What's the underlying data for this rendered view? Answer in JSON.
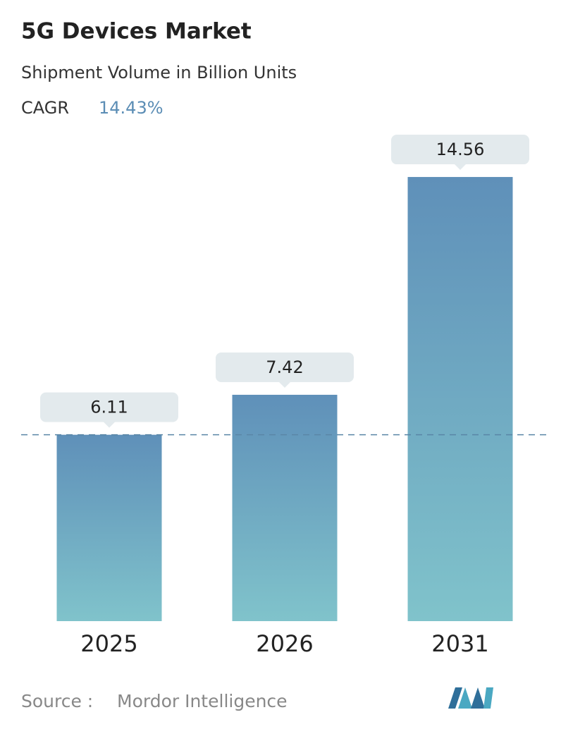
{
  "chart_data": {
    "type": "bar",
    "title": "5G Devices Market",
    "subtitle": "Shipment Volume in Billion Units",
    "cagr": {
      "label": "CAGR",
      "value": "14.43%"
    },
    "categories": [
      "2025",
      "2026",
      "2031"
    ],
    "values": [
      6.11,
      7.42,
      14.56
    ],
    "gradient": [
      "#5f90b9",
      "#80c3cb"
    ],
    "label_box_color": "#e3eaed",
    "ylim": [
      0,
      15
    ],
    "reference_line": true,
    "source": {
      "label": "Source :",
      "name": "Mordor Intelligence"
    }
  }
}
